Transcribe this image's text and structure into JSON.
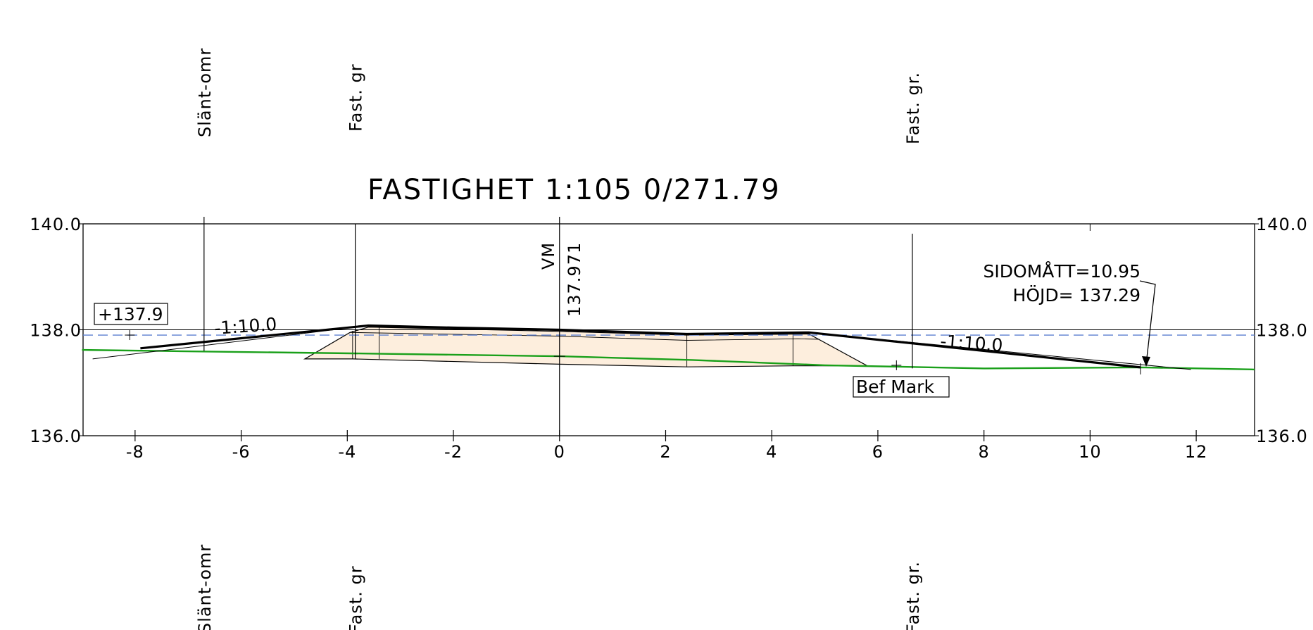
{
  "title": "FASTIGHET 1:105 0/271.79",
  "colors": {
    "frame": "#000000",
    "ground": "#1aa01a",
    "water_level": "#5b7fd0",
    "fill": "#fdeedd",
    "road_line": "#000000"
  },
  "axes": {
    "x_ticks": [
      "-8",
      "-6",
      "-4",
      "-2",
      "0",
      "2",
      "4",
      "6",
      "8",
      "10",
      "12"
    ],
    "x_tick_values": [
      -8,
      -6,
      -4,
      -2,
      0,
      2,
      4,
      6,
      8,
      10,
      12
    ],
    "y_labels_left": [
      "140.0",
      "138.0",
      "136.0"
    ],
    "y_labels_right": [
      "140.0",
      "138.0",
      "136.0"
    ],
    "y_values": [
      140.0,
      138.0,
      136.0
    ],
    "xlim": [
      -8.98,
      13.1
    ],
    "ylim": [
      136.0,
      140.0
    ]
  },
  "boundary_labels_top": [
    {
      "text": "Slänt-omr",
      "x": -6.7
    },
    {
      "text": "Fast. gr",
      "x": -3.85
    },
    {
      "text": "Fast. gr.",
      "x": 6.65
    }
  ],
  "boundary_labels_bottom": [
    {
      "text": "Slänt-omr",
      "x": -6.7
    },
    {
      "text": "Fast. gr",
      "x": -3.85
    },
    {
      "text": "Fast. gr.",
      "x": 6.65
    }
  ],
  "centerline": {
    "label": "VM",
    "elevation": "137.971"
  },
  "annotations": {
    "left_level": "+137.9",
    "left_slope": "-1:10.0",
    "right_slope": "-1:10.0",
    "ground_label": "Bef Mark",
    "side_measure": "SIDOMÅTT=10.95",
    "height": "HÖJD= 137.29"
  },
  "profiles": {
    "ground": [
      [
        -9.0,
        137.62
      ],
      [
        -7.5,
        137.6
      ],
      [
        -3.5,
        137.55
      ],
      [
        0.0,
        137.5
      ],
      [
        2.5,
        137.43
      ],
      [
        5.0,
        137.33
      ],
      [
        8.0,
        137.27
      ],
      [
        10.95,
        137.29
      ],
      [
        13.1,
        137.25
      ]
    ],
    "water_level": 137.9,
    "road_top": [
      [
        -7.9,
        137.65
      ],
      [
        -3.6,
        138.08
      ],
      [
        -2.0,
        138.04
      ],
      [
        0.0,
        138.0
      ],
      [
        2.4,
        137.92
      ],
      [
        4.7,
        137.95
      ],
      [
        10.95,
        137.29
      ]
    ],
    "left_slope_thin": [
      [
        -8.8,
        137.45
      ],
      [
        -3.6,
        138.08
      ]
    ],
    "right_slope_thin": [
      [
        4.7,
        137.95
      ],
      [
        11.9,
        137.25
      ]
    ],
    "pavement_body": [
      [
        -4.8,
        137.45
      ],
      [
        -3.95,
        137.95
      ],
      [
        -3.6,
        138.05
      ],
      [
        0.0,
        137.97
      ],
      [
        2.4,
        137.9
      ],
      [
        4.7,
        137.92
      ],
      [
        5.8,
        137.32
      ],
      [
        4.4,
        137.32
      ],
      [
        2.4,
        137.3
      ],
      [
        0.0,
        137.35
      ],
      [
        -3.9,
        137.45
      ]
    ]
  }
}
